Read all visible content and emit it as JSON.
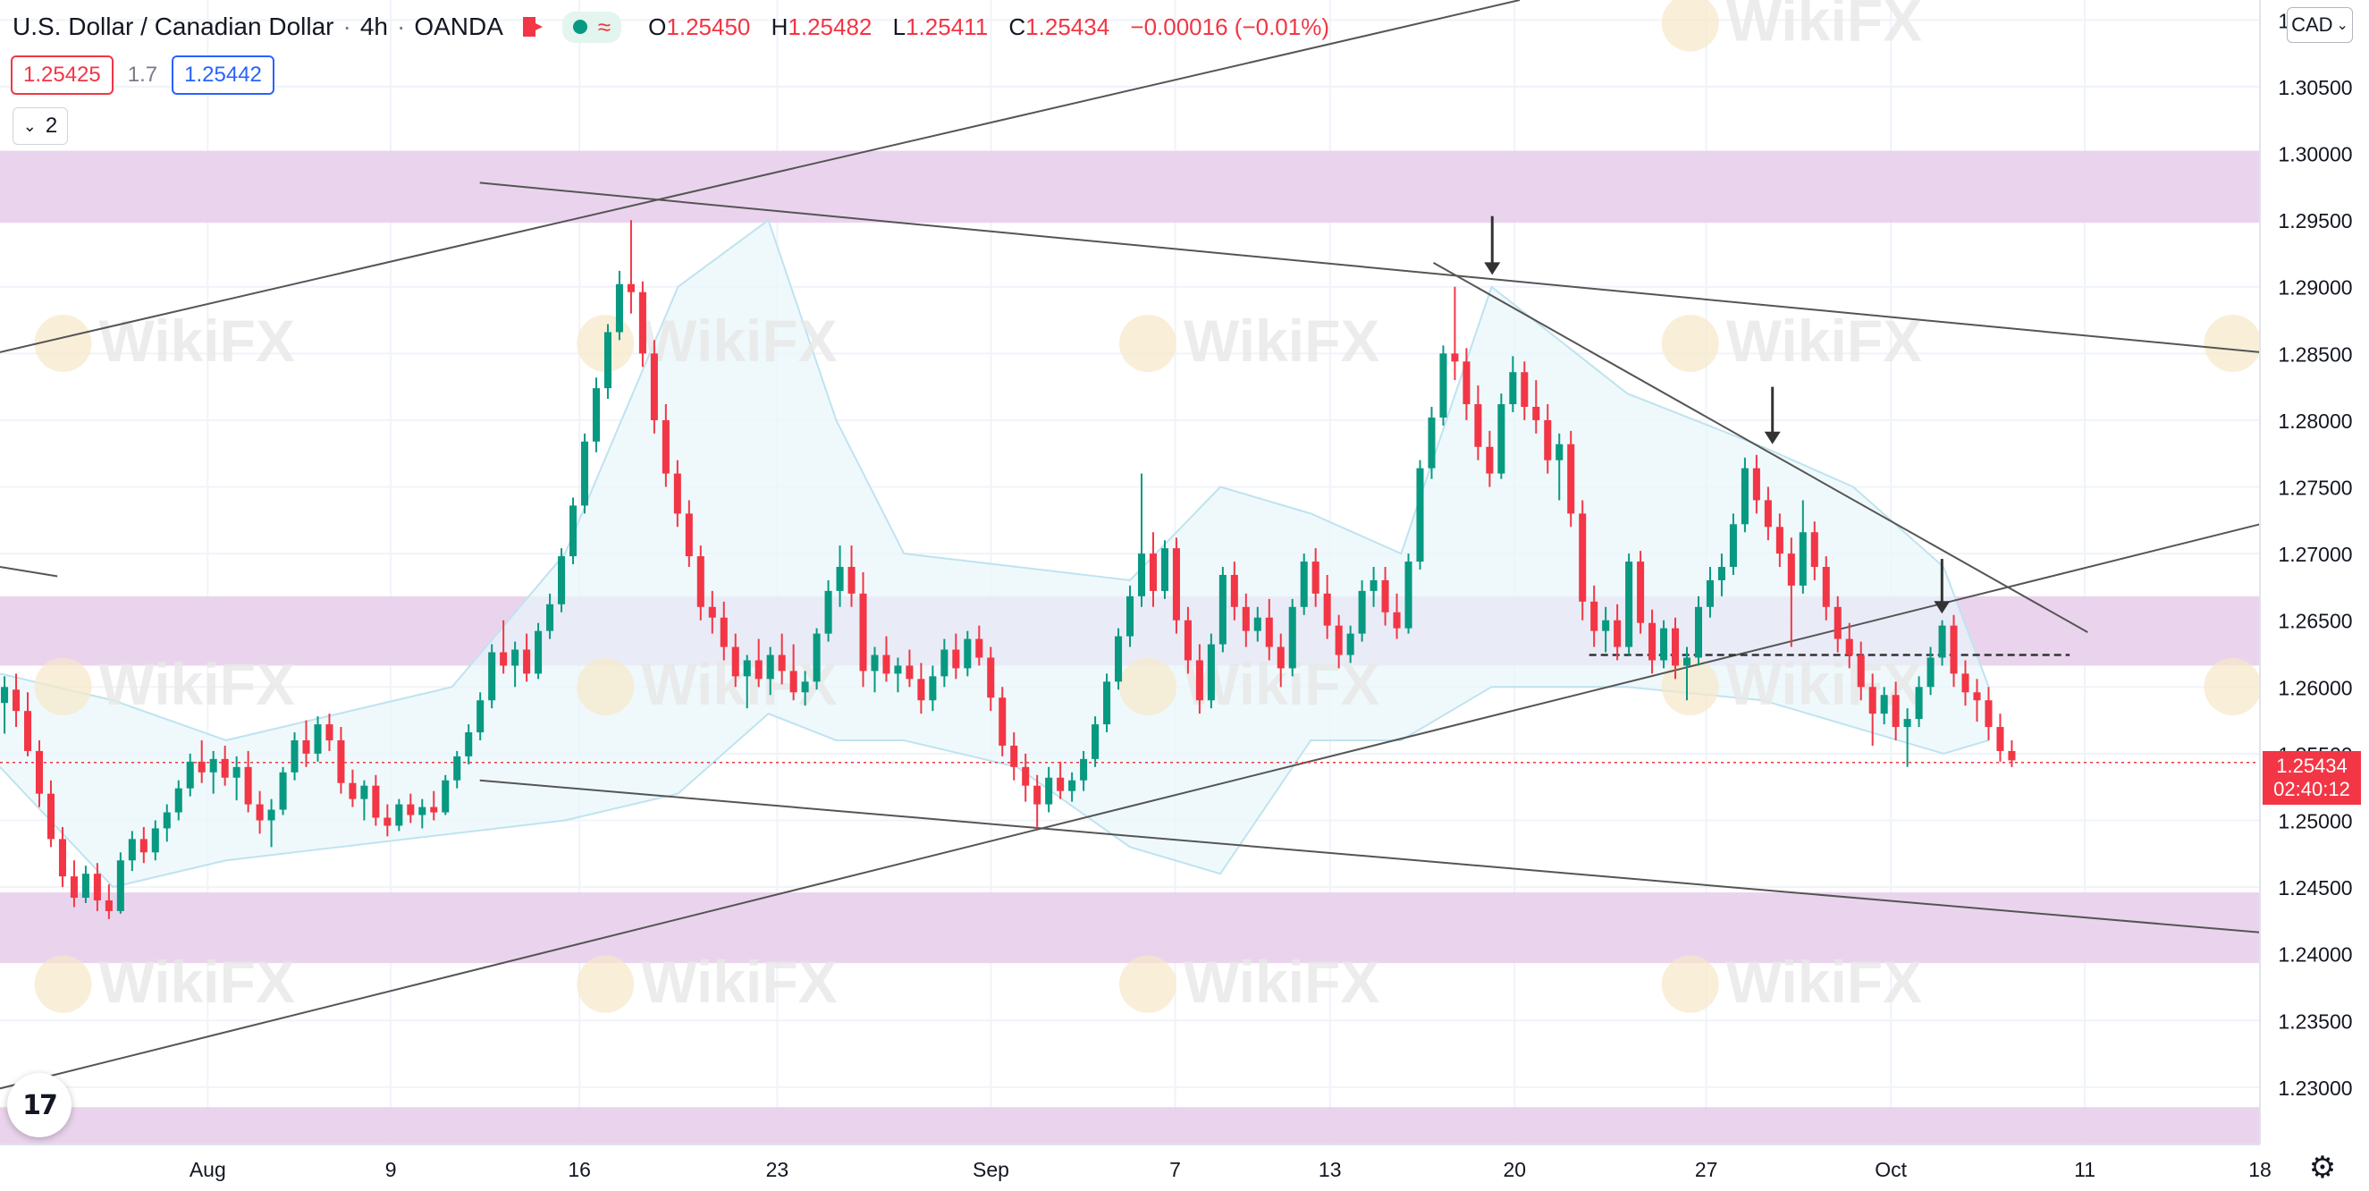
{
  "header": {
    "symbol": "U.S. Dollar / Canadian Dollar",
    "timeframe": "4h",
    "exchange": "OANDA",
    "ohlc": {
      "o_label": "O",
      "o": "1.25450",
      "h_label": "H",
      "h": "1.25482",
      "l_label": "L",
      "l": "1.25411",
      "c_label": "C",
      "c": "1.25434",
      "change": "−0.00016 (−0.01%)"
    }
  },
  "trade": {
    "sell": "1.25425",
    "spread": "1.7",
    "buy": "1.25442"
  },
  "indicators_count": "2",
  "currency": "CAD",
  "last_price": {
    "value": "1.25434",
    "countdown": "02:40:12"
  },
  "watermark": "WikiFX",
  "colors": {
    "up": "#089981",
    "down": "#f23645",
    "zone": "#e6cdea",
    "band_fill": "#e8f6fb",
    "band_line": "#bfe3ef",
    "trend": "#555555"
  },
  "chart_data": {
    "type": "candlestick",
    "y_axis": {
      "ylim": [
        1.2257,
        1.3115
      ],
      "ticks": [
        "1.31000",
        "1.30500",
        "1.30000",
        "1.29500",
        "1.29000",
        "1.28500",
        "1.28000",
        "1.27500",
        "1.27000",
        "1.26500",
        "1.26000",
        "1.25500",
        "1.25000",
        "1.24500",
        "1.24000",
        "1.23500",
        "1.23000"
      ]
    },
    "x_axis": {
      "ticks": [
        {
          "label": "Aug",
          "pos": 0.0919
        },
        {
          "label": "9",
          "pos": 0.1729
        },
        {
          "label": "16",
          "pos": 0.2564
        },
        {
          "label": "23",
          "pos": 0.3439
        },
        {
          "label": "Sep",
          "pos": 0.4385
        },
        {
          "label": "7",
          "pos": 0.52
        },
        {
          "label": "13",
          "pos": 0.5885
        },
        {
          "label": "20",
          "pos": 0.6702
        },
        {
          "label": "27",
          "pos": 0.755
        },
        {
          "label": "Oct",
          "pos": 0.8367
        },
        {
          "label": "11",
          "pos": 0.9225
        },
        {
          "label": "18",
          "pos": 1.0
        }
      ]
    },
    "support_resistance_zones": [
      {
        "top": 1.3002,
        "bottom": 1.2948
      },
      {
        "top": 1.2668,
        "bottom": 1.2616
      },
      {
        "top": 1.2446,
        "bottom": 1.2393
      },
      {
        "top": 1.2285,
        "bottom": 1.2255
      }
    ],
    "candles_ohlc": [
      [
        1.2588,
        1.2608,
        1.2565,
        1.26
      ],
      [
        1.2598,
        1.261,
        1.257,
        1.2582
      ],
      [
        1.2582,
        1.2596,
        1.2548,
        1.2552
      ],
      [
        1.2552,
        1.256,
        1.251,
        1.252
      ],
      [
        1.252,
        1.253,
        1.248,
        1.2486
      ],
      [
        1.2486,
        1.2495,
        1.245,
        1.2458
      ],
      [
        1.2458,
        1.247,
        1.2435,
        1.2442
      ],
      [
        1.2442,
        1.2466,
        1.2438,
        1.246
      ],
      [
        1.246,
        1.2468,
        1.2432,
        1.244
      ],
      [
        1.244,
        1.2452,
        1.2426,
        1.2432
      ],
      [
        1.2432,
        1.2476,
        1.243,
        1.247
      ],
      [
        1.247,
        1.2492,
        1.2462,
        1.2486
      ],
      [
        1.2486,
        1.2495,
        1.2468,
        1.2476
      ],
      [
        1.2476,
        1.25,
        1.247,
        1.2494
      ],
      [
        1.2494,
        1.2512,
        1.2484,
        1.2506
      ],
      [
        1.2506,
        1.253,
        1.25,
        1.2524
      ],
      [
        1.2524,
        1.255,
        1.2518,
        1.2544
      ],
      [
        1.2544,
        1.256,
        1.2528,
        1.2536
      ],
      [
        1.2536,
        1.2552,
        1.252,
        1.2546
      ],
      [
        1.2546,
        1.2556,
        1.2526,
        1.2532
      ],
      [
        1.2532,
        1.2548,
        1.2515,
        1.254
      ],
      [
        1.254,
        1.2552,
        1.2506,
        1.2512
      ],
      [
        1.2512,
        1.2522,
        1.249,
        1.25
      ],
      [
        1.25,
        1.2516,
        1.248,
        1.2508
      ],
      [
        1.2508,
        1.254,
        1.2504,
        1.2536
      ],
      [
        1.2536,
        1.2566,
        1.253,
        1.256
      ],
      [
        1.256,
        1.2575,
        1.254,
        1.255
      ],
      [
        1.255,
        1.2578,
        1.2544,
        1.2572
      ],
      [
        1.2572,
        1.258,
        1.2552,
        1.256
      ],
      [
        1.256,
        1.257,
        1.252,
        1.2528
      ],
      [
        1.2528,
        1.2538,
        1.251,
        1.2516
      ],
      [
        1.2516,
        1.253,
        1.25,
        1.2526
      ],
      [
        1.2526,
        1.2534,
        1.2496,
        1.2502
      ],
      [
        1.2502,
        1.2512,
        1.2488,
        1.2496
      ],
      [
        1.2496,
        1.2516,
        1.2492,
        1.2512
      ],
      [
        1.2512,
        1.252,
        1.2498,
        1.2504
      ],
      [
        1.2504,
        1.2516,
        1.2494,
        1.251
      ],
      [
        1.251,
        1.2522,
        1.25,
        1.2506
      ],
      [
        1.2506,
        1.2534,
        1.2504,
        1.253
      ],
      [
        1.253,
        1.2552,
        1.2524,
        1.2548
      ],
      [
        1.2548,
        1.2572,
        1.2542,
        1.2566
      ],
      [
        1.2566,
        1.2596,
        1.256,
        1.259
      ],
      [
        1.259,
        1.2632,
        1.2584,
        1.2626
      ],
      [
        1.2626,
        1.265,
        1.261,
        1.2616
      ],
      [
        1.2616,
        1.2634,
        1.26,
        1.2628
      ],
      [
        1.2628,
        1.264,
        1.2604,
        1.261
      ],
      [
        1.261,
        1.2648,
        1.2606,
        1.2642
      ],
      [
        1.2642,
        1.267,
        1.2636,
        1.2662
      ],
      [
        1.2662,
        1.2704,
        1.2656,
        1.2698
      ],
      [
        1.2698,
        1.2742,
        1.2692,
        1.2736
      ],
      [
        1.2736,
        1.279,
        1.273,
        1.2784
      ],
      [
        1.2784,
        1.2832,
        1.2776,
        1.2824
      ],
      [
        1.2824,
        1.2872,
        1.2816,
        1.2866
      ],
      [
        1.2866,
        1.2912,
        1.286,
        1.2902
      ],
      [
        1.2902,
        1.295,
        1.288,
        1.2896
      ],
      [
        1.2896,
        1.2904,
        1.284,
        1.285
      ],
      [
        1.285,
        1.286,
        1.279,
        1.28
      ],
      [
        1.28,
        1.2812,
        1.275,
        1.276
      ],
      [
        1.276,
        1.277,
        1.272,
        1.273
      ],
      [
        1.273,
        1.274,
        1.269,
        1.2698
      ],
      [
        1.2698,
        1.2706,
        1.265,
        1.266
      ],
      [
        1.266,
        1.2672,
        1.264,
        1.2652
      ],
      [
        1.2652,
        1.2664,
        1.262,
        1.263
      ],
      [
        1.263,
        1.264,
        1.26,
        1.2608
      ],
      [
        1.2608,
        1.2624,
        1.2584,
        1.262
      ],
      [
        1.262,
        1.2636,
        1.26,
        1.2606
      ],
      [
        1.2606,
        1.263,
        1.2594,
        1.2624
      ],
      [
        1.2624,
        1.264,
        1.2602,
        1.2612
      ],
      [
        1.2612,
        1.2632,
        1.259,
        1.2596
      ],
      [
        1.2596,
        1.2612,
        1.2586,
        1.2604
      ],
      [
        1.2604,
        1.2644,
        1.2598,
        1.264
      ],
      [
        1.264,
        1.268,
        1.2634,
        1.2672
      ],
      [
        1.2672,
        1.2706,
        1.266,
        1.269
      ],
      [
        1.269,
        1.2706,
        1.266,
        1.267
      ],
      [
        1.267,
        1.2686,
        1.26,
        1.2612
      ],
      [
        1.2612,
        1.263,
        1.2596,
        1.2624
      ],
      [
        1.2624,
        1.2638,
        1.2604,
        1.261
      ],
      [
        1.261,
        1.2622,
        1.2596,
        1.2616
      ],
      [
        1.2616,
        1.2628,
        1.26,
        1.2606
      ],
      [
        1.2606,
        1.2618,
        1.258,
        1.259
      ],
      [
        1.259,
        1.2616,
        1.2582,
        1.2608
      ],
      [
        1.2608,
        1.2636,
        1.26,
        1.2628
      ],
      [
        1.2628,
        1.264,
        1.2606,
        1.2614
      ],
      [
        1.2614,
        1.2642,
        1.2608,
        1.2636
      ],
      [
        1.2636,
        1.2646,
        1.2616,
        1.2622
      ],
      [
        1.2622,
        1.263,
        1.2582,
        1.2592
      ],
      [
        1.2592,
        1.26,
        1.2548,
        1.2556
      ],
      [
        1.2556,
        1.2566,
        1.253,
        1.254
      ],
      [
        1.254,
        1.255,
        1.2514,
        1.2526
      ],
      [
        1.2526,
        1.2534,
        1.2494,
        1.2512
      ],
      [
        1.2512,
        1.254,
        1.2506,
        1.2532
      ],
      [
        1.2532,
        1.2544,
        1.2516,
        1.2522
      ],
      [
        1.2522,
        1.2536,
        1.2514,
        1.253
      ],
      [
        1.253,
        1.2552,
        1.2522,
        1.2546
      ],
      [
        1.2546,
        1.2578,
        1.254,
        1.2572
      ],
      [
        1.2572,
        1.261,
        1.2566,
        1.2604
      ],
      [
        1.2604,
        1.2644,
        1.2598,
        1.2638
      ],
      [
        1.2638,
        1.2676,
        1.263,
        1.2668
      ],
      [
        1.2668,
        1.276,
        1.266,
        1.27
      ],
      [
        1.27,
        1.2716,
        1.266,
        1.2672
      ],
      [
        1.2672,
        1.271,
        1.2666,
        1.2704
      ],
      [
        1.2704,
        1.2712,
        1.264,
        1.265
      ],
      [
        1.265,
        1.266,
        1.261,
        1.262
      ],
      [
        1.262,
        1.2632,
        1.258,
        1.259
      ],
      [
        1.259,
        1.264,
        1.2584,
        1.2632
      ],
      [
        1.2632,
        1.269,
        1.2626,
        1.2684
      ],
      [
        1.2684,
        1.2694,
        1.265,
        1.266
      ],
      [
        1.266,
        1.267,
        1.263,
        1.2642
      ],
      [
        1.2642,
        1.266,
        1.2634,
        1.2652
      ],
      [
        1.2652,
        1.2666,
        1.262,
        1.263
      ],
      [
        1.263,
        1.264,
        1.26,
        1.2614
      ],
      [
        1.2614,
        1.2666,
        1.2608,
        1.266
      ],
      [
        1.266,
        1.27,
        1.2654,
        1.2694
      ],
      [
        1.2694,
        1.2704,
        1.266,
        1.267
      ],
      [
        1.267,
        1.2684,
        1.2636,
        1.2646
      ],
      [
        1.2646,
        1.2654,
        1.2614,
        1.2624
      ],
      [
        1.2624,
        1.2646,
        1.2618,
        1.264
      ],
      [
        1.264,
        1.268,
        1.2634,
        1.2672
      ],
      [
        1.2672,
        1.269,
        1.266,
        1.268
      ],
      [
        1.268,
        1.269,
        1.2646,
        1.2656
      ],
      [
        1.2656,
        1.267,
        1.2636,
        1.2644
      ],
      [
        1.2644,
        1.27,
        1.264,
        1.2694
      ],
      [
        1.2694,
        1.277,
        1.2688,
        1.2764
      ],
      [
        1.2764,
        1.281,
        1.2756,
        1.2802
      ],
      [
        1.2802,
        1.2856,
        1.2796,
        1.285
      ],
      [
        1.285,
        1.29,
        1.283,
        1.2844
      ],
      [
        1.2844,
        1.2854,
        1.28,
        1.2812
      ],
      [
        1.2812,
        1.2826,
        1.277,
        1.278
      ],
      [
        1.278,
        1.2792,
        1.275,
        1.276
      ],
      [
        1.276,
        1.282,
        1.2756,
        1.2812
      ],
      [
        1.2812,
        1.2848,
        1.2806,
        1.2836
      ],
      [
        1.2836,
        1.2844,
        1.28,
        1.281
      ],
      [
        1.281,
        1.283,
        1.279,
        1.28
      ],
      [
        1.28,
        1.2812,
        1.276,
        1.277
      ],
      [
        1.277,
        1.279,
        1.274,
        1.2782
      ],
      [
        1.2782,
        1.2792,
        1.272,
        1.273
      ],
      [
        1.273,
        1.274,
        1.265,
        1.2664
      ],
      [
        1.2664,
        1.2676,
        1.263,
        1.2642
      ],
      [
        1.2642,
        1.266,
        1.2626,
        1.265
      ],
      [
        1.265,
        1.2662,
        1.262,
        1.263
      ],
      [
        1.263,
        1.27,
        1.2624,
        1.2694
      ],
      [
        1.2694,
        1.2702,
        1.264,
        1.2648
      ],
      [
        1.2648,
        1.2658,
        1.261,
        1.262
      ],
      [
        1.262,
        1.265,
        1.2614,
        1.2644
      ],
      [
        1.2644,
        1.2652,
        1.2606,
        1.2616
      ],
      [
        1.2616,
        1.263,
        1.259,
        1.2622
      ],
      [
        1.2622,
        1.2668,
        1.2616,
        1.266
      ],
      [
        1.266,
        1.269,
        1.2652,
        1.268
      ],
      [
        1.268,
        1.27,
        1.2668,
        1.269
      ],
      [
        1.269,
        1.273,
        1.2684,
        1.2722
      ],
      [
        1.2722,
        1.2772,
        1.2716,
        1.2764
      ],
      [
        1.2764,
        1.2774,
        1.273,
        1.274
      ],
      [
        1.274,
        1.275,
        1.271,
        1.272
      ],
      [
        1.272,
        1.273,
        1.269,
        1.27
      ],
      [
        1.27,
        1.2712,
        1.263,
        1.2676
      ],
      [
        1.2676,
        1.274,
        1.267,
        1.2716
      ],
      [
        1.2716,
        1.2724,
        1.268,
        1.269
      ],
      [
        1.269,
        1.2698,
        1.265,
        1.266
      ],
      [
        1.266,
        1.2668,
        1.2626,
        1.2636
      ],
      [
        1.2636,
        1.2648,
        1.2614,
        1.2624
      ],
      [
        1.2624,
        1.2634,
        1.259,
        1.26
      ],
      [
        1.26,
        1.261,
        1.2556,
        1.258
      ],
      [
        1.258,
        1.26,
        1.2572,
        1.2594
      ],
      [
        1.2594,
        1.2604,
        1.256,
        1.257
      ],
      [
        1.257,
        1.2584,
        1.254,
        1.2576
      ],
      [
        1.2576,
        1.2608,
        1.257,
        1.26
      ],
      [
        1.26,
        1.263,
        1.2594,
        1.2622
      ],
      [
        1.2622,
        1.265,
        1.2616,
        1.2646
      ],
      [
        1.2646,
        1.2654,
        1.26,
        1.261
      ],
      [
        1.261,
        1.262,
        1.2586,
        1.2596
      ],
      [
        1.2596,
        1.2606,
        1.2574,
        1.259
      ],
      [
        1.259,
        1.26,
        1.256,
        1.257
      ],
      [
        1.257,
        1.258,
        1.2544,
        1.2552
      ],
      [
        1.2552,
        1.256,
        1.254,
        1.2545
      ]
    ],
    "trendlines": [
      {
        "name": "upper-channel-resistance",
        "from": [
          0.2123,
          1.2978
        ],
        "to": [
          1.0,
          1.2851
        ]
      },
      {
        "name": "lower-channel-support",
        "from": [
          0.2123,
          1.253
        ],
        "to": [
          1.0,
          1.2416
        ]
      },
      {
        "name": "rising-support",
        "from": [
          0.0,
          1.2299
        ],
        "to": [
          1.0,
          1.2722
        ]
      },
      {
        "name": "upper-rising-line",
        "from": [
          0.0,
          1.2851
        ],
        "to": [
          0.6725,
          1.3115
        ]
      },
      {
        "name": "short-segment",
        "from": [
          0.0,
          1.269
        ],
        "to": [
          0.0254,
          1.2683
        ]
      },
      {
        "name": "falling-resistance",
        "from": [
          0.6343,
          1.2918
        ],
        "to": [
          0.9238,
          1.2641
        ]
      }
    ],
    "dashed_level": {
      "value": 1.2624,
      "from": 0.7032,
      "to": 0.9158
    },
    "arrows": [
      {
        "x": 0.6603,
        "y_top": 1.2953,
        "y_bottom": 1.2909
      },
      {
        "x": 0.7843,
        "y_top": 1.2825,
        "y_bottom": 1.2782
      },
      {
        "x": 0.8593,
        "y_top": 1.2696,
        "y_bottom": 1.2655
      }
    ],
    "bollinger_band": {
      "upper": [
        [
          0.0,
          1.261
        ],
        [
          0.05,
          1.259
        ],
        [
          0.1,
          1.256
        ],
        [
          0.15,
          1.258
        ],
        [
          0.2,
          1.26
        ],
        [
          0.25,
          1.27
        ],
        [
          0.3,
          1.29
        ],
        [
          0.34,
          1.295
        ],
        [
          0.37,
          1.28
        ],
        [
          0.4,
          1.27
        ],
        [
          0.45,
          1.269
        ],
        [
          0.5,
          1.268
        ],
        [
          0.54,
          1.275
        ],
        [
          0.58,
          1.273
        ],
        [
          0.62,
          1.27
        ],
        [
          0.66,
          1.29
        ],
        [
          0.72,
          1.282
        ],
        [
          0.78,
          1.278
        ],
        [
          0.82,
          1.275
        ],
        [
          0.86,
          1.269
        ],
        [
          0.88,
          1.26
        ]
      ],
      "lower": [
        [
          0.0,
          1.254
        ],
        [
          0.05,
          1.245
        ],
        [
          0.1,
          1.247
        ],
        [
          0.15,
          1.248
        ],
        [
          0.2,
          1.249
        ],
        [
          0.25,
          1.25
        ],
        [
          0.3,
          1.252
        ],
        [
          0.34,
          1.258
        ],
        [
          0.37,
          1.256
        ],
        [
          0.4,
          1.256
        ],
        [
          0.45,
          1.254
        ],
        [
          0.5,
          1.248
        ],
        [
          0.54,
          1.246
        ],
        [
          0.58,
          1.256
        ],
        [
          0.62,
          1.256
        ],
        [
          0.66,
          1.26
        ],
        [
          0.72,
          1.26
        ],
        [
          0.78,
          1.259
        ],
        [
          0.82,
          1.257
        ],
        [
          0.86,
          1.255
        ],
        [
          0.88,
          1.256
        ]
      ]
    }
  }
}
